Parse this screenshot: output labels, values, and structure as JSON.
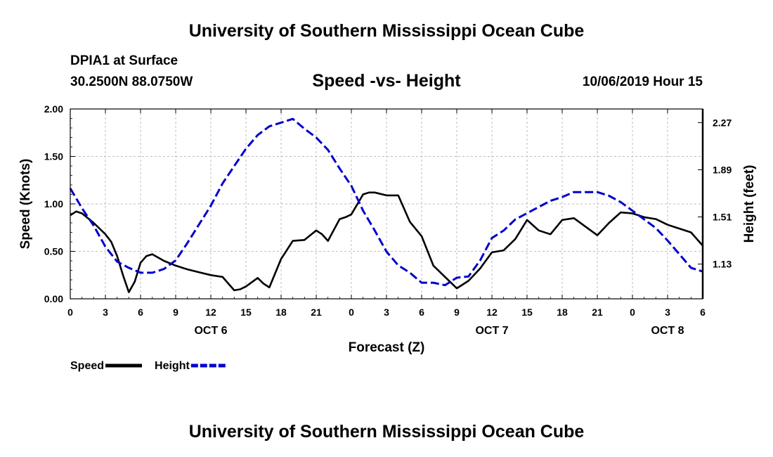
{
  "header": {
    "title": "University of Southern Mississippi Ocean Cube",
    "station": "DPIA1 at Surface",
    "coords": "30.2500N 88.0750W",
    "chart_title": "Speed -vs- Height",
    "datetime": "10/06/2019 Hour 15"
  },
  "footer": {
    "title": "University of Southern Mississippi Ocean Cube"
  },
  "chart_data": {
    "type": "line",
    "title": "Speed -vs- Height",
    "xlabel": "Forecast (Z)",
    "ylabel": "Speed (Knots)",
    "y2label": "Height (feet)",
    "xlim": [
      0,
      54
    ],
    "ylim": [
      0,
      2.0
    ],
    "y2lim": [
      0.85,
      2.38
    ],
    "x_tick_values": [
      0,
      3,
      6,
      9,
      12,
      15,
      18,
      21,
      24,
      27,
      30,
      33,
      36,
      39,
      42,
      45,
      48,
      51,
      54
    ],
    "x_tick_labels": [
      "0",
      "3",
      "6",
      "9",
      "12",
      "15",
      "18",
      "21",
      "0",
      "3",
      "6",
      "9",
      "12",
      "15",
      "18",
      "21",
      "0",
      "3",
      "6"
    ],
    "date_labels": [
      {
        "x": 12,
        "label": "OCT 6"
      },
      {
        "x": 36,
        "label": "OCT 7"
      },
      {
        "x": 51,
        "label": "OCT 8"
      }
    ],
    "y_ticks": [
      0,
      0.5,
      1.0,
      1.5,
      2.0
    ],
    "y_tick_labels": [
      "0.00",
      "0.50",
      "1.00",
      "1.50",
      "2.00"
    ],
    "y2_ticks": [
      1.13,
      1.51,
      1.89,
      2.27
    ],
    "y2_tick_labels": [
      "1.13",
      "1.51",
      "1.89",
      "2.27"
    ],
    "grid": true,
    "legend_position": "bottom-left",
    "series": [
      {
        "name": "Speed",
        "color": "#000000",
        "style": "solid",
        "axis": "left",
        "x": [
          0,
          0.5,
          1,
          1.5,
          2,
          3,
          3.5,
          4,
          4.5,
          5,
          5.5,
          6,
          6.5,
          7,
          8,
          9,
          10,
          11,
          12,
          13,
          14,
          14.5,
          15,
          16,
          16.5,
          17,
          18,
          19,
          20,
          21,
          21.5,
          22,
          23,
          23.5,
          24,
          25,
          25.5,
          26,
          27,
          28,
          29,
          30,
          31,
          32,
          33,
          34,
          35,
          36,
          37,
          38,
          39,
          40,
          41,
          42,
          43,
          44,
          45,
          46,
          47,
          48,
          49,
          50,
          51,
          52,
          53,
          54
        ],
        "values": [
          0.88,
          0.92,
          0.9,
          0.85,
          0.8,
          0.68,
          0.6,
          0.45,
          0.25,
          0.07,
          0.18,
          0.38,
          0.45,
          0.47,
          0.4,
          0.35,
          0.31,
          0.28,
          0.25,
          0.23,
          0.09,
          0.1,
          0.13,
          0.22,
          0.16,
          0.12,
          0.42,
          0.61,
          0.62,
          0.72,
          0.68,
          0.61,
          0.84,
          0.86,
          0.89,
          1.1,
          1.12,
          1.12,
          1.09,
          1.09,
          0.81,
          0.66,
          0.35,
          0.23,
          0.11,
          0.19,
          0.32,
          0.49,
          0.51,
          0.63,
          0.83,
          0.72,
          0.68,
          0.83,
          0.85,
          0.76,
          0.67,
          0.8,
          0.91,
          0.9,
          0.86,
          0.84,
          0.78,
          0.74,
          0.7,
          0.56
        ]
      },
      {
        "name": "Height",
        "color": "#0000cc",
        "style": "dashed",
        "axis": "right",
        "x": [
          0,
          1,
          2,
          3,
          4,
          5,
          6,
          7,
          8,
          9,
          10,
          11,
          12,
          13,
          14,
          15,
          16,
          17,
          18,
          19,
          20,
          21,
          22,
          23,
          24,
          25,
          26,
          27,
          28,
          29,
          30,
          31,
          32,
          33,
          34,
          35,
          36,
          37,
          38,
          39,
          40,
          41,
          42,
          43,
          44,
          45,
          46,
          47,
          48,
          49,
          50,
          51,
          52,
          53,
          54
        ],
        "values": [
          1.74,
          1.58,
          1.44,
          1.27,
          1.15,
          1.1,
          1.06,
          1.06,
          1.09,
          1.16,
          1.3,
          1.45,
          1.6,
          1.78,
          1.92,
          2.06,
          2.17,
          2.24,
          2.27,
          2.3,
          2.22,
          2.15,
          2.05,
          1.9,
          1.76,
          1.56,
          1.4,
          1.23,
          1.12,
          1.06,
          0.98,
          0.98,
          0.96,
          1.02,
          1.03,
          1.16,
          1.34,
          1.4,
          1.49,
          1.54,
          1.59,
          1.64,
          1.67,
          1.71,
          1.71,
          1.71,
          1.68,
          1.63,
          1.56,
          1.49,
          1.42,
          1.32,
          1.21,
          1.1,
          1.07
        ]
      }
    ]
  }
}
